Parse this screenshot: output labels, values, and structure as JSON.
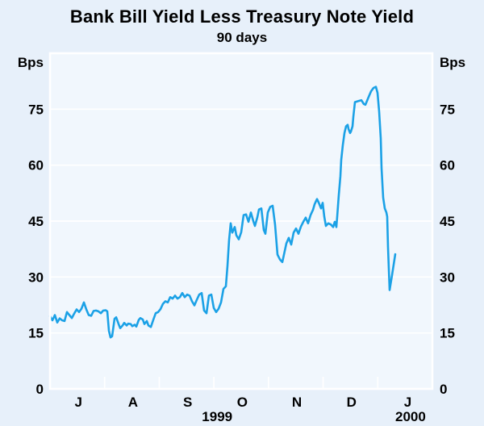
{
  "chart_data": {
    "type": "line",
    "title": "Bank Bill Yield Less Treasury Note Yield",
    "subtitle": "90 days",
    "unit": "Bps",
    "ylim": [
      0,
      90
    ],
    "yticks": [
      0,
      15,
      30,
      45,
      60,
      75
    ],
    "grid": "horizontal",
    "legend": "none",
    "x_axis": {
      "range": [
        0,
        7
      ],
      "description": "months from 1 July 1999 to 1 February 2000, daily data",
      "boundary_ticks": [
        1,
        2,
        3,
        4,
        5,
        6
      ],
      "month_labels": [
        {
          "label": "J",
          "t": 0.52
        },
        {
          "label": "A",
          "t": 1.52
        },
        {
          "label": "S",
          "t": 2.52
        },
        {
          "label": "O",
          "t": 3.52
        },
        {
          "label": "N",
          "t": 4.52
        },
        {
          "label": "D",
          "t": 5.52
        },
        {
          "label": "J",
          "t": 6.55
        }
      ],
      "year_labels": [
        {
          "label": "1999",
          "t": 3.06
        },
        {
          "label": "2000",
          "t": 6.6
        }
      ]
    },
    "colors": {
      "line": "#1ba1e6",
      "plot_background": "#f1f7fd",
      "page_background": "#e7f0fa",
      "grid_and_frame": "#ffffff",
      "text": "#000000"
    },
    "series": [
      {
        "name": "Bank bill yield less treasury note yield, 90 days (Bps)",
        "points": [
          [
            0.0,
            19.5
          ],
          [
            0.044,
            18.4
          ],
          [
            0.089,
            19.8
          ],
          [
            0.133,
            17.8
          ],
          [
            0.177,
            18.9
          ],
          [
            0.222,
            18.4
          ],
          [
            0.266,
            18.2
          ],
          [
            0.31,
            20.6
          ],
          [
            0.354,
            19.8
          ],
          [
            0.399,
            19.0
          ],
          [
            0.443,
            20.2
          ],
          [
            0.487,
            21.3
          ],
          [
            0.532,
            20.6
          ],
          [
            0.576,
            21.5
          ],
          [
            0.62,
            23.2
          ],
          [
            0.665,
            21.3
          ],
          [
            0.709,
            19.8
          ],
          [
            0.753,
            19.6
          ],
          [
            0.797,
            20.9
          ],
          [
            0.842,
            21.0
          ],
          [
            0.886,
            20.8
          ],
          [
            0.93,
            20.3
          ],
          [
            0.975,
            21.0
          ],
          [
            1.019,
            21.1
          ],
          [
            1.048,
            20.8
          ],
          [
            1.078,
            15.6
          ],
          [
            1.108,
            13.8
          ],
          [
            1.137,
            14.1
          ],
          [
            1.181,
            18.8
          ],
          [
            1.211,
            19.2
          ],
          [
            1.255,
            17.4
          ],
          [
            1.285,
            16.3
          ],
          [
            1.329,
            17.0
          ],
          [
            1.359,
            17.7
          ],
          [
            1.403,
            17.0
          ],
          [
            1.432,
            17.5
          ],
          [
            1.477,
            17.4
          ],
          [
            1.506,
            16.8
          ],
          [
            1.551,
            17.2
          ],
          [
            1.58,
            16.7
          ],
          [
            1.624,
            18.5
          ],
          [
            1.654,
            19.0
          ],
          [
            1.698,
            18.6
          ],
          [
            1.728,
            17.4
          ],
          [
            1.772,
            18.2
          ],
          [
            1.802,
            17.0
          ],
          [
            1.846,
            16.6
          ],
          [
            1.89,
            18.5
          ],
          [
            1.935,
            20.3
          ],
          [
            1.979,
            20.6
          ],
          [
            2.023,
            21.4
          ],
          [
            2.068,
            22.8
          ],
          [
            2.112,
            23.5
          ],
          [
            2.156,
            23.2
          ],
          [
            2.2,
            24.6
          ],
          [
            2.245,
            24.2
          ],
          [
            2.289,
            25.0
          ],
          [
            2.333,
            24.2
          ],
          [
            2.378,
            24.6
          ],
          [
            2.422,
            25.7
          ],
          [
            2.466,
            24.6
          ],
          [
            2.511,
            25.3
          ],
          [
            2.555,
            25.0
          ],
          [
            2.599,
            23.5
          ],
          [
            2.644,
            22.4
          ],
          [
            2.688,
            23.9
          ],
          [
            2.732,
            25.3
          ],
          [
            2.776,
            25.7
          ],
          [
            2.821,
            21.0
          ],
          [
            2.865,
            20.3
          ],
          [
            2.909,
            25.0
          ],
          [
            2.954,
            25.3
          ],
          [
            2.998,
            21.7
          ],
          [
            3.042,
            20.6
          ],
          [
            3.087,
            21.5
          ],
          [
            3.131,
            23.2
          ],
          [
            3.175,
            26.8
          ],
          [
            3.219,
            27.5
          ],
          [
            3.249,
            33.0
          ],
          [
            3.278,
            40.0
          ],
          [
            3.308,
            44.4
          ],
          [
            3.337,
            41.9
          ],
          [
            3.382,
            43.4
          ],
          [
            3.411,
            41.2
          ],
          [
            3.456,
            40.1
          ],
          [
            3.5,
            42.0
          ],
          [
            3.544,
            46.6
          ],
          [
            3.588,
            46.8
          ],
          [
            3.633,
            44.8
          ],
          [
            3.677,
            47.3
          ],
          [
            3.721,
            45.0
          ],
          [
            3.751,
            43.7
          ],
          [
            3.795,
            46.0
          ],
          [
            3.825,
            48.1
          ],
          [
            3.869,
            48.4
          ],
          [
            3.913,
            42.6
          ],
          [
            3.943,
            41.6
          ],
          [
            3.987,
            47.3
          ],
          [
            4.031,
            48.8
          ],
          [
            4.076,
            49.1
          ],
          [
            4.12,
            44.0
          ],
          [
            4.164,
            36.0
          ],
          [
            4.209,
            34.7
          ],
          [
            4.253,
            34.0
          ],
          [
            4.297,
            37.0
          ],
          [
            4.327,
            39.0
          ],
          [
            4.371,
            40.5
          ],
          [
            4.415,
            38.7
          ],
          [
            4.46,
            41.9
          ],
          [
            4.504,
            43.0
          ],
          [
            4.548,
            41.6
          ],
          [
            4.593,
            43.5
          ],
          [
            4.637,
            44.8
          ],
          [
            4.681,
            45.9
          ],
          [
            4.725,
            44.4
          ],
          [
            4.77,
            46.6
          ],
          [
            4.814,
            48.0
          ],
          [
            4.844,
            49.5
          ],
          [
            4.888,
            50.9
          ],
          [
            4.917,
            50.0
          ],
          [
            4.962,
            48.4
          ],
          [
            4.991,
            49.9
          ],
          [
            5.021,
            46.2
          ],
          [
            5.05,
            43.7
          ],
          [
            5.095,
            44.4
          ],
          [
            5.139,
            44.1
          ],
          [
            5.183,
            43.4
          ],
          [
            5.213,
            44.8
          ],
          [
            5.242,
            43.4
          ],
          [
            5.257,
            46.2
          ],
          [
            5.287,
            52.0
          ],
          [
            5.316,
            57.1
          ],
          [
            5.331,
            61.4
          ],
          [
            5.361,
            65.4
          ],
          [
            5.39,
            68.6
          ],
          [
            5.42,
            70.4
          ],
          [
            5.449,
            70.8
          ],
          [
            5.464,
            69.7
          ],
          [
            5.493,
            68.6
          ],
          [
            5.508,
            69.0
          ],
          [
            5.538,
            70.4
          ],
          [
            5.553,
            72.9
          ],
          [
            5.582,
            76.9
          ],
          [
            5.626,
            77.1
          ],
          [
            5.671,
            77.3
          ],
          [
            5.7,
            77.4
          ],
          [
            5.745,
            76.4
          ],
          [
            5.774,
            76.2
          ],
          [
            5.833,
            78.3
          ],
          [
            5.877,
            79.8
          ],
          [
            5.922,
            80.7
          ],
          [
            5.966,
            81.0
          ],
          [
            5.996,
            79.4
          ],
          [
            6.025,
            74.4
          ],
          [
            6.055,
            67.2
          ],
          [
            6.07,
            59.2
          ],
          [
            6.099,
            51.3
          ],
          [
            6.129,
            48.4
          ],
          [
            6.158,
            47.3
          ],
          [
            6.173,
            46.2
          ],
          [
            6.188,
            38.0
          ],
          [
            6.217,
            26.5
          ],
          [
            6.262,
            30.5
          ],
          [
            6.321,
            36.1
          ]
        ]
      }
    ]
  }
}
